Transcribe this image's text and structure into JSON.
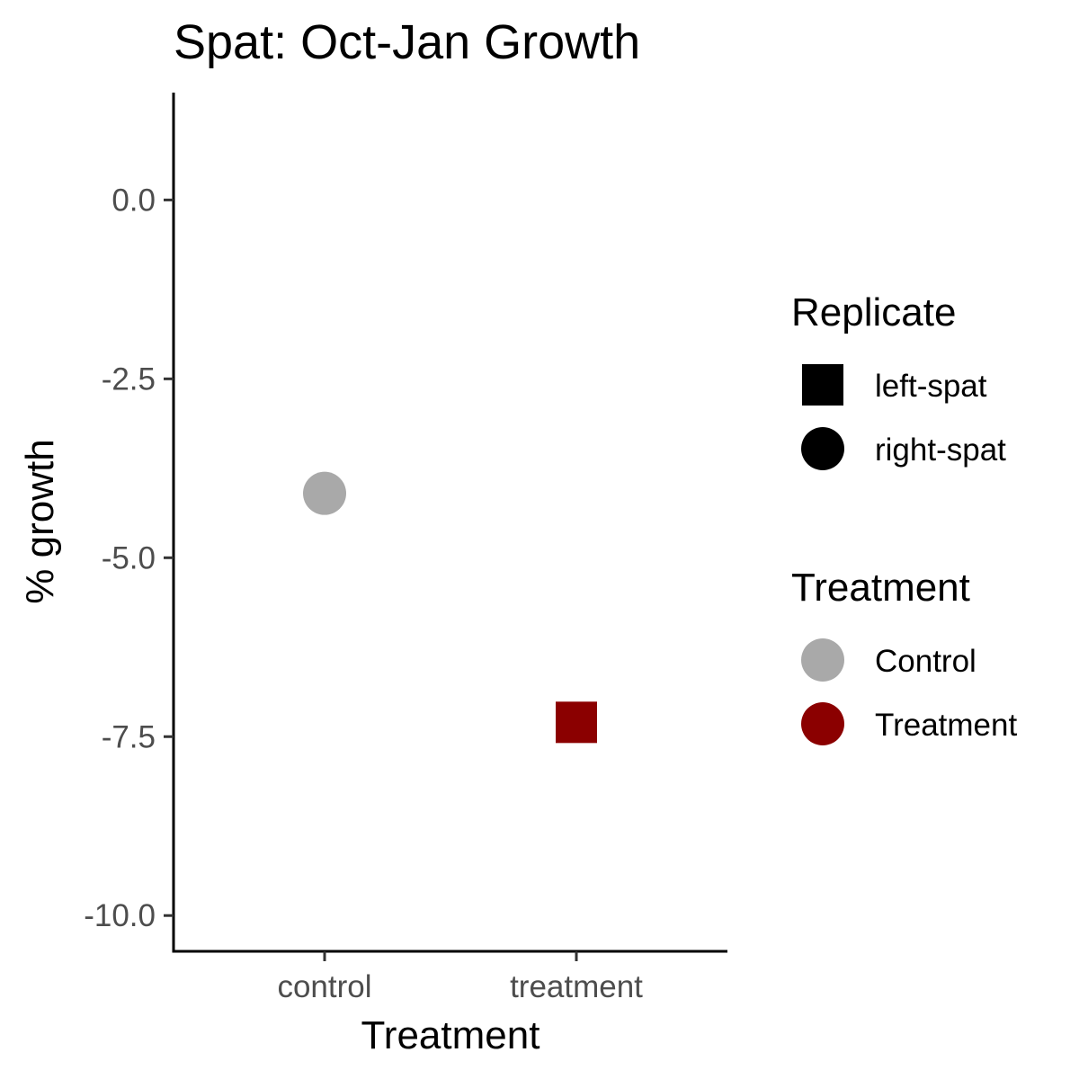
{
  "chart_data": {
    "type": "scatter",
    "title": "Spat: Oct-Jan Growth",
    "xlabel": "Treatment",
    "ylabel": "% growth",
    "categories": [
      "control",
      "treatment"
    ],
    "ylim": [
      -10.5,
      1.5
    ],
    "y_ticks": [
      0.0,
      -2.5,
      -5.0,
      -7.5,
      -10.0
    ],
    "y_tick_labels": [
      "0.0",
      "-2.5",
      "-5.0",
      "-7.5",
      "-10.0"
    ],
    "grid": false,
    "legend_position": "right",
    "points": [
      {
        "x": "control",
        "y": -4.1,
        "replicate": "right-spat",
        "treatment": "Control"
      },
      {
        "x": "treatment",
        "y": -7.3,
        "replicate": "left-spat",
        "treatment": "Treatment"
      }
    ],
    "legends": [
      {
        "title": "Replicate",
        "entries": [
          {
            "label": "left-spat",
            "shape": "square",
            "color": "#000000"
          },
          {
            "label": "right-spat",
            "shape": "circle",
            "color": "#000000"
          }
        ]
      },
      {
        "title": "Treatment",
        "entries": [
          {
            "label": "Control",
            "shape": "circle",
            "color": "#a9a9a9"
          },
          {
            "label": "Treatment",
            "shape": "circle",
            "color": "#8b0000"
          }
        ]
      }
    ],
    "colors": {
      "Control": "#a9a9a9",
      "Treatment": "#8b0000"
    }
  }
}
